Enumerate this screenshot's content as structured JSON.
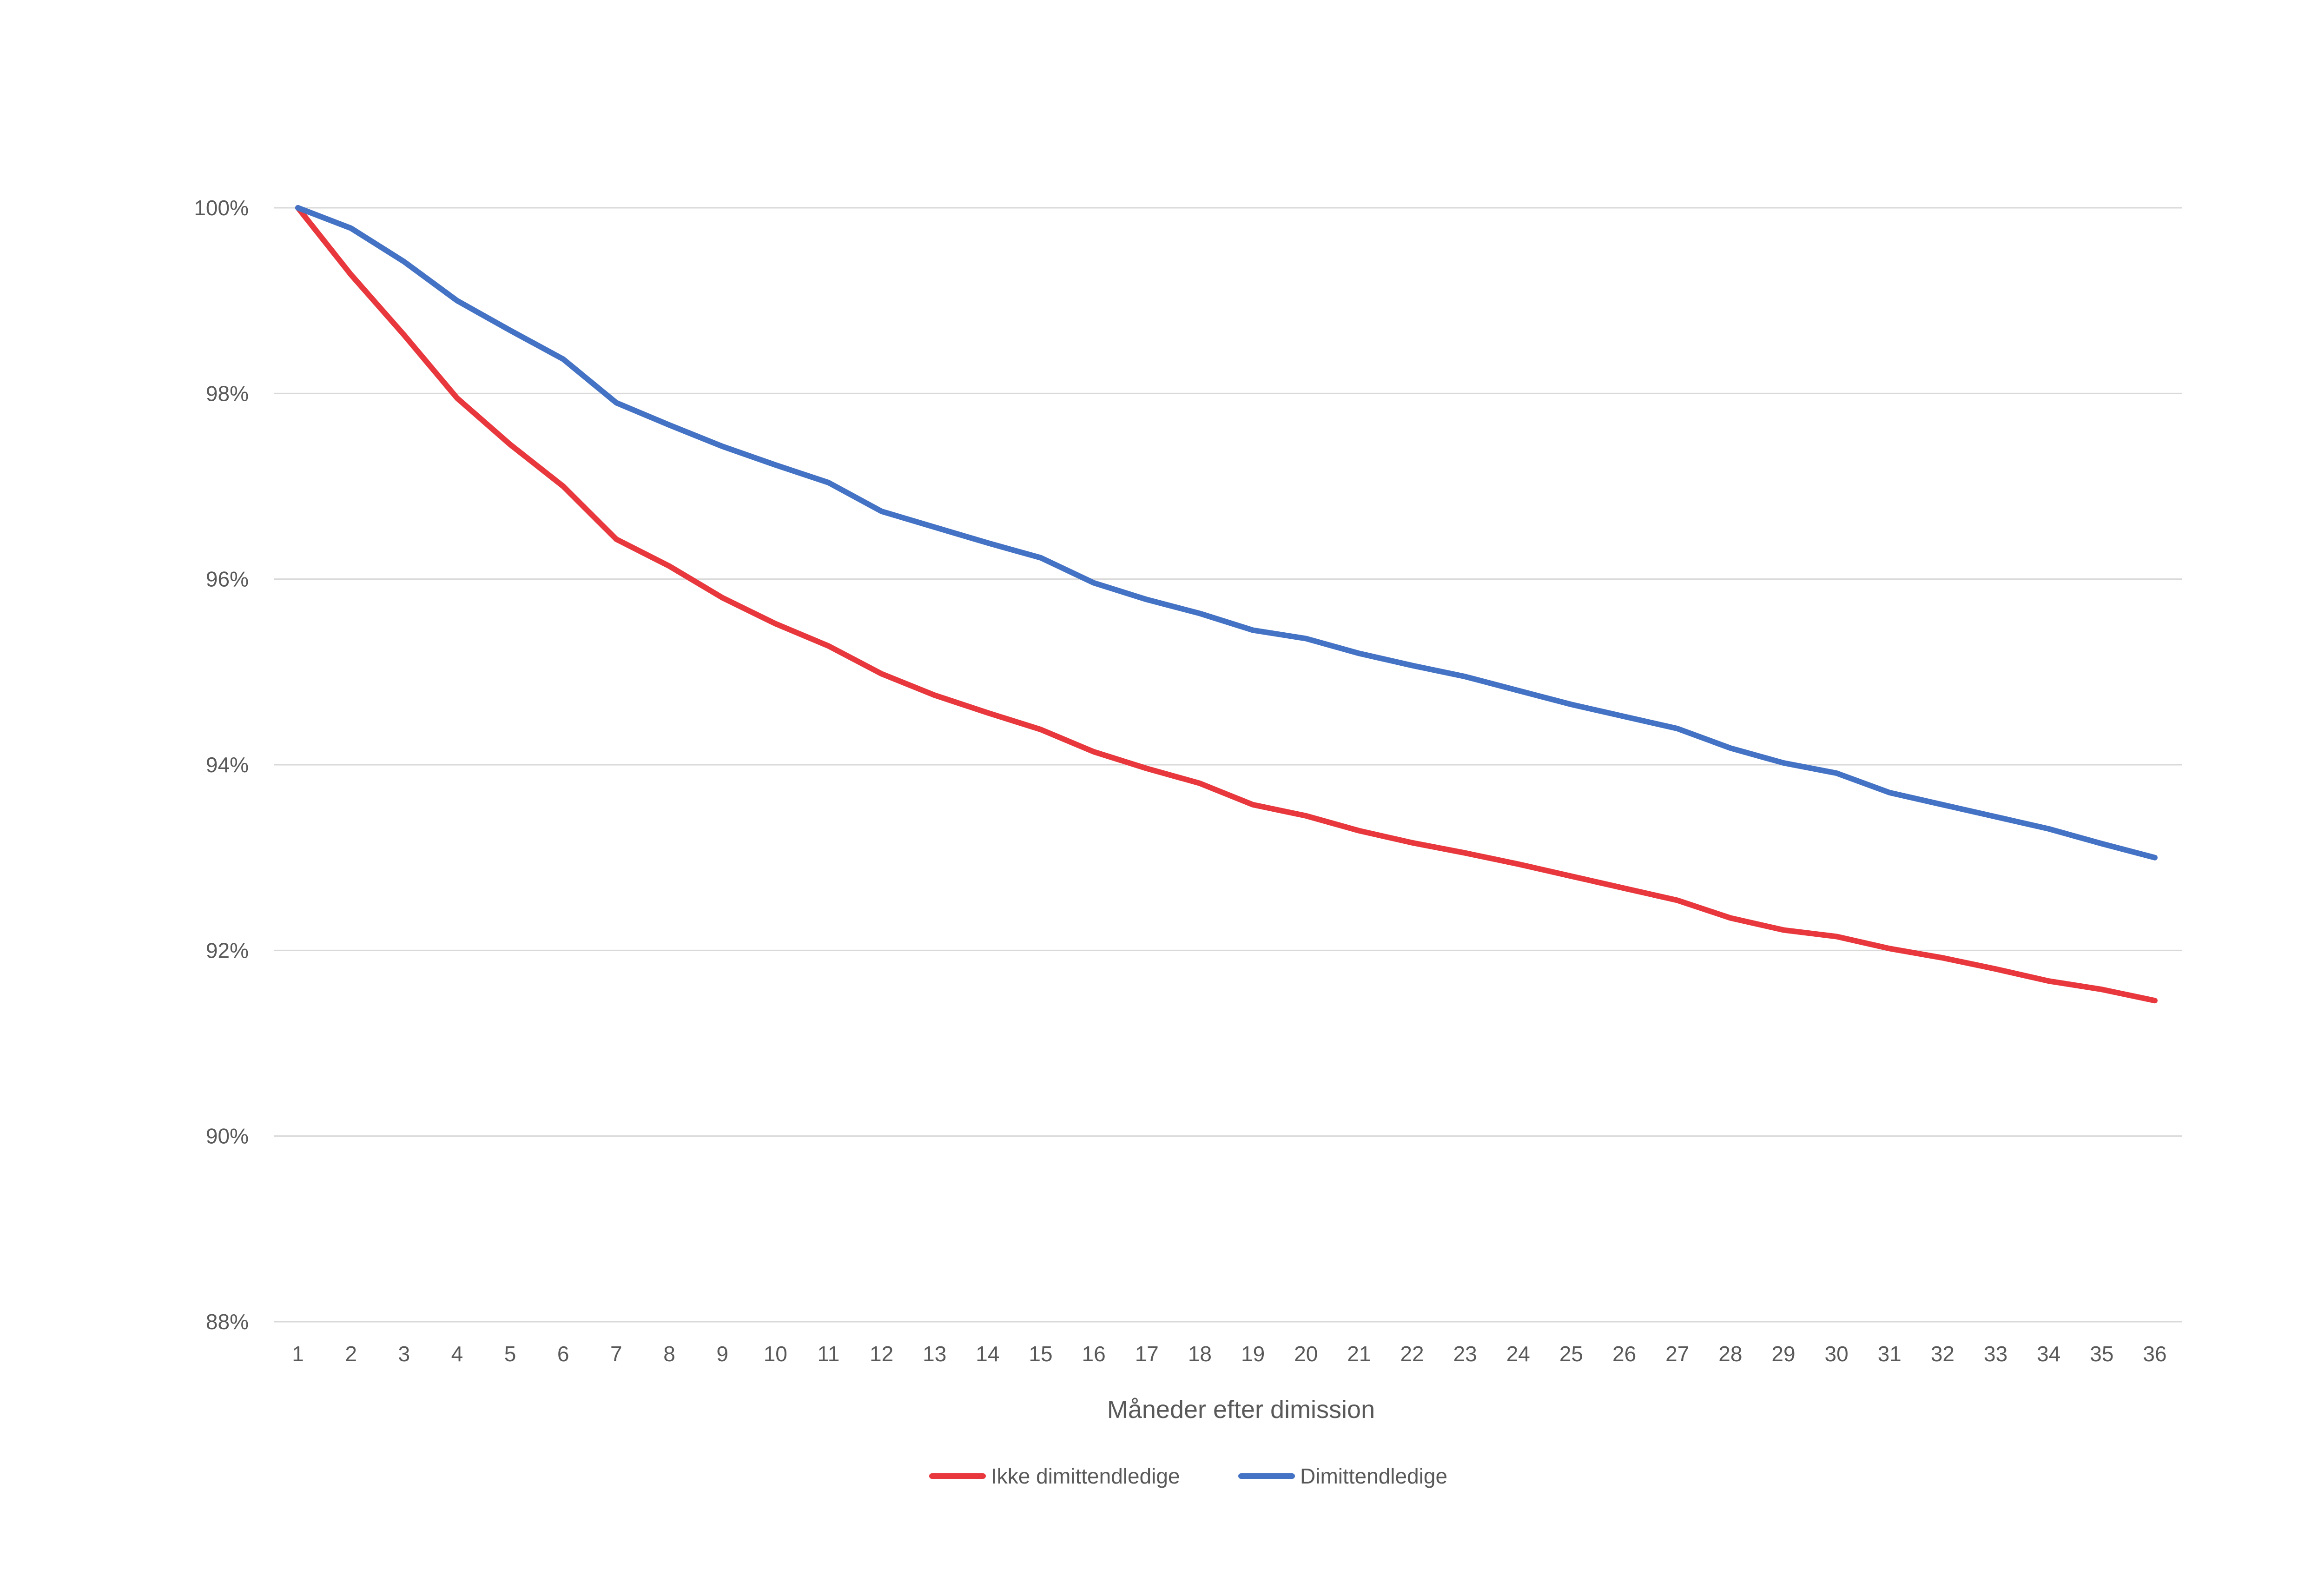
{
  "chart_data": {
    "type": "line",
    "title": "",
    "xlabel": "Måneder efter dimission",
    "ylabel": "",
    "x": [
      1,
      2,
      3,
      4,
      5,
      6,
      7,
      8,
      9,
      10,
      11,
      12,
      13,
      14,
      15,
      16,
      17,
      18,
      19,
      20,
      21,
      22,
      23,
      24,
      25,
      26,
      27,
      28,
      29,
      30,
      31,
      32,
      33,
      34,
      35,
      36
    ],
    "x_tick_labels": [
      "1",
      "2",
      "3",
      "4",
      "5",
      "6",
      "7",
      "8",
      "9",
      "10",
      "11",
      "12",
      "13",
      "14",
      "15",
      "16",
      "17",
      "18",
      "19",
      "20",
      "21",
      "22",
      "23",
      "24",
      "25",
      "26",
      "27",
      "28",
      "29",
      "30",
      "31",
      "32",
      "33",
      "34",
      "35",
      "36"
    ],
    "ylim": [
      88,
      100
    ],
    "y_ticks": [
      88,
      90,
      92,
      94,
      96,
      98,
      100
    ],
    "y_tick_labels": [
      "88%",
      "90%",
      "92%",
      "94%",
      "96%",
      "98%",
      "100%"
    ],
    "y_unit": "%",
    "grid": true,
    "legend_position": "bottom",
    "series": [
      {
        "name": "Ikke dimittendledige",
        "color": "#e8383d",
        "values": [
          100.0,
          99.28,
          98.63,
          97.95,
          97.45,
          97.0,
          96.43,
          96.14,
          95.8,
          95.52,
          95.28,
          94.98,
          94.75,
          94.56,
          94.38,
          94.14,
          93.96,
          93.8,
          93.57,
          93.45,
          93.29,
          93.16,
          93.05,
          92.93,
          92.8,
          92.67,
          92.54,
          92.35,
          92.22,
          92.15,
          92.02,
          91.92,
          91.8,
          91.67,
          91.58,
          91.46
        ]
      },
      {
        "name": "Dimittendledige",
        "color": "#4472c4",
        "values": [
          100.0,
          99.78,
          99.42,
          99.0,
          98.68,
          98.37,
          97.9,
          97.66,
          97.43,
          97.23,
          97.04,
          96.73,
          96.56,
          96.39,
          96.23,
          95.96,
          95.78,
          95.63,
          95.45,
          95.36,
          95.2,
          95.07,
          94.95,
          94.8,
          94.65,
          94.52,
          94.39,
          94.18,
          94.02,
          93.91,
          93.7,
          93.57,
          93.44,
          93.31,
          93.15,
          93.0
        ]
      }
    ]
  }
}
